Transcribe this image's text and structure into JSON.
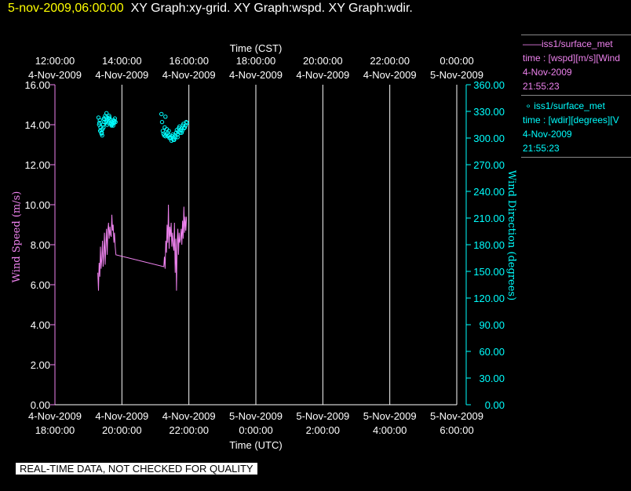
{
  "header": {
    "timestamp": "5-nov-2009,06:00:00",
    "graphs": "XY Graph:xy-grid.  XY Graph:wspd.  XY Graph:wdir."
  },
  "legend": {
    "wspd": {
      "symbol": "——",
      "source": "iss1/surface_met",
      "desc": "time : [wspd][m/s][Wind",
      "date": "4-Nov-2009",
      "time": "21:55:23"
    },
    "wdir": {
      "symbol": "∘",
      "source": "iss1/surface_met",
      "desc": "time : [wdir][degrees][V",
      "date": "4-Nov-2009",
      "time": "21:55:23"
    }
  },
  "footer": {
    "disclaimer": "REAL-TIME DATA, NOT CHECKED FOR QUALITY"
  },
  "colors": {
    "wspd": "#ee82ee",
    "wdir": "#00ffff",
    "grid": "#ffffff",
    "background": "#000000"
  },
  "chart_data": {
    "type": "line",
    "title": "",
    "xlabel_top": "Time (CST)",
    "xlabel_bottom": "Time (UTC)",
    "ylabel_left": "Wind Speed (m/s)",
    "ylabel_right": "Wind Direction (degrees)",
    "xlim_hours_utc": [
      18,
      30
    ],
    "ylim_left": [
      0,
      16
    ],
    "ylim_right": [
      0,
      360
    ],
    "grid": "vertical",
    "x_ticks_bottom": [
      {
        "h": 18,
        "date": "4-Nov-2009",
        "time": "18:00:00"
      },
      {
        "h": 20,
        "date": "4-Nov-2009",
        "time": "20:00:00"
      },
      {
        "h": 22,
        "date": "4-Nov-2009",
        "time": "22:00:00"
      },
      {
        "h": 24,
        "date": "5-Nov-2009",
        "time": "0:00:00"
      },
      {
        "h": 26,
        "date": "5-Nov-2009",
        "time": "2:00:00"
      },
      {
        "h": 28,
        "date": "5-Nov-2009",
        "time": "4:00:00"
      },
      {
        "h": 30,
        "date": "5-Nov-2009",
        "time": "6:00:00"
      }
    ],
    "x_ticks_top": [
      {
        "h": 18,
        "time": "12:00:00",
        "date": "4-Nov-2009"
      },
      {
        "h": 20,
        "time": "14:00:00",
        "date": "4-Nov-2009"
      },
      {
        "h": 22,
        "time": "16:00:00",
        "date": "4-Nov-2009"
      },
      {
        "h": 24,
        "time": "18:00:00",
        "date": "4-Nov-2009"
      },
      {
        "h": 26,
        "time": "20:00:00",
        "date": "4-Nov-2009"
      },
      {
        "h": 28,
        "time": "22:00:00",
        "date": "4-Nov-2009"
      },
      {
        "h": 30,
        "time": "0:00:00",
        "date": "5-Nov-2009"
      }
    ],
    "y_ticks_left": [
      0,
      2,
      4,
      6,
      8,
      10,
      12,
      14,
      16
    ],
    "y_ticks_right": [
      0,
      30,
      60,
      90,
      120,
      150,
      180,
      210,
      240,
      270,
      300,
      330,
      360
    ],
    "series": [
      {
        "name": "iss1/surface_met wspd",
        "type": "line",
        "x": [
          19.28,
          19.3,
          19.32,
          19.34,
          19.36,
          19.38,
          19.4,
          19.42,
          19.44,
          19.46,
          19.48,
          19.5,
          19.52,
          19.54,
          19.56,
          19.58,
          19.6,
          19.62,
          19.64,
          19.66,
          19.68,
          19.7,
          19.72,
          19.74,
          19.76,
          19.78,
          19.8,
          19.82,
          21.25,
          21.27,
          21.29,
          21.31,
          21.33,
          21.35,
          21.37,
          21.39,
          21.41,
          21.43,
          21.45,
          21.47,
          21.49,
          21.51,
          21.53,
          21.55,
          21.57,
          21.59,
          21.61,
          21.63,
          21.65,
          21.67,
          21.69,
          21.71,
          21.73,
          21.75,
          21.77,
          21.79,
          21.81,
          21.83,
          21.85,
          21.87,
          21.89,
          21.91,
          21.93
        ],
        "y": [
          6.6,
          5.7,
          7.1,
          6.4,
          7.9,
          6.8,
          7.3,
          8.2,
          6.9,
          7.6,
          8.6,
          7.0,
          8.0,
          8.8,
          7.5,
          8.7,
          9.1,
          8.3,
          8.9,
          8.5,
          8.4,
          9.5,
          8.7,
          9.0,
          8.1,
          8.6,
          7.9,
          7.5,
          6.9,
          7.4,
          6.8,
          8.2,
          7.6,
          9.0,
          8.1,
          10.0,
          7.8,
          8.9,
          8.4,
          9.1,
          7.9,
          8.6,
          8.0,
          7.7,
          9.1,
          6.6,
          8.3,
          5.7,
          8.0,
          8.8,
          7.5,
          8.6,
          8.1,
          8.3,
          8.8,
          8.0,
          9.2,
          8.3,
          9.9,
          8.6,
          9.4,
          8.7,
          9.4
        ]
      },
      {
        "name": "iss1/surface_met wdir",
        "type": "scatter",
        "x": [
          19.3,
          19.32,
          19.33,
          19.35,
          19.36,
          19.38,
          19.39,
          19.41,
          19.42,
          19.44,
          19.45,
          19.47,
          19.48,
          19.5,
          19.52,
          19.53,
          19.55,
          19.56,
          19.58,
          19.6,
          19.61,
          19.63,
          19.64,
          19.66,
          19.68,
          19.69,
          19.71,
          19.72,
          19.74,
          19.76,
          19.77,
          19.79,
          19.81,
          19.34,
          19.4,
          19.46,
          19.54,
          19.62,
          19.7,
          19.78,
          21.18,
          21.2,
          21.22,
          21.24,
          21.26,
          21.28,
          21.3,
          21.32,
          21.34,
          21.36,
          21.38,
          21.4,
          21.42,
          21.44,
          21.46,
          21.48,
          21.5,
          21.52,
          21.54,
          21.56,
          21.58,
          21.6,
          21.62,
          21.64,
          21.66,
          21.68,
          21.7,
          21.72,
          21.74,
          21.76,
          21.78,
          21.8,
          21.82,
          21.84,
          21.86,
          21.88,
          21.9,
          21.92,
          21.94,
          21.3,
          21.42,
          21.54,
          21.66,
          21.78
        ],
        "y": [
          323,
          315,
          317,
          308,
          312,
          309,
          305,
          303,
          310,
          315,
          312,
          318,
          321,
          325,
          323,
          318,
          320,
          315,
          317,
          322,
          319,
          323,
          321,
          320,
          316,
          314,
          318,
          316,
          314,
          320,
          317,
          322,
          318,
          320,
          306,
          322,
          328,
          325,
          315,
          319,
          327,
          318,
          308,
          305,
          303,
          312,
          302,
          304,
          310,
          306,
          302,
          308,
          303,
          301,
          300,
          297,
          302,
          304,
          300,
          298,
          303,
          301,
          306,
          309,
          304,
          307,
          311,
          313,
          306,
          309,
          311,
          308,
          314,
          316,
          311,
          312,
          314,
          318,
          317,
          324,
          300,
          298,
          301,
          306
        ]
      }
    ]
  }
}
